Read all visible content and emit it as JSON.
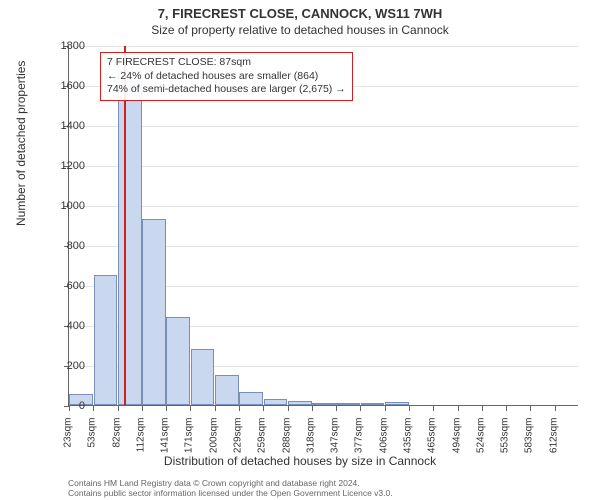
{
  "title": "7, FIRECREST CLOSE, CANNOCK, WS11 7WH",
  "subtitle": "Size of property relative to detached houses in Cannock",
  "chart": {
    "type": "histogram",
    "ylabel": "Number of detached properties",
    "xlabel": "Distribution of detached houses by size in Cannock",
    "ylim": [
      0,
      1800
    ],
    "ytick_step": 200,
    "background_color": "#ffffff",
    "grid_color": "#e5e5e5",
    "bar_fill": "#c9d7ef",
    "bar_stroke": "#7a8fb8",
    "marker_line_color": "#d02020",
    "marker_value_sqm": 87,
    "x_categories": [
      "23sqm",
      "53sqm",
      "82sqm",
      "112sqm",
      "141sqm",
      "171sqm",
      "200sqm",
      "229sqm",
      "259sqm",
      "288sqm",
      "318sqm",
      "347sqm",
      "377sqm",
      "406sqm",
      "435sqm",
      "465sqm",
      "494sqm",
      "524sqm",
      "553sqm",
      "583sqm",
      "612sqm"
    ],
    "values": [
      55,
      650,
      1670,
      930,
      440,
      280,
      150,
      65,
      30,
      18,
      12,
      10,
      8,
      15,
      0,
      0,
      0,
      0,
      0,
      0
    ],
    "label_fontsize": 12,
    "tick_fontsize": 11
  },
  "annotation": {
    "line1": "7 FIRECREST CLOSE: 87sqm",
    "line2": "← 24% of detached houses are smaller (864)",
    "line3": "74% of semi-detached houses are larger (2,675) →"
  },
  "footer": {
    "line1": "Contains HM Land Registry data © Crown copyright and database right 2024.",
    "line2": "Contains public sector information licensed under the Open Government Licence v3.0."
  }
}
